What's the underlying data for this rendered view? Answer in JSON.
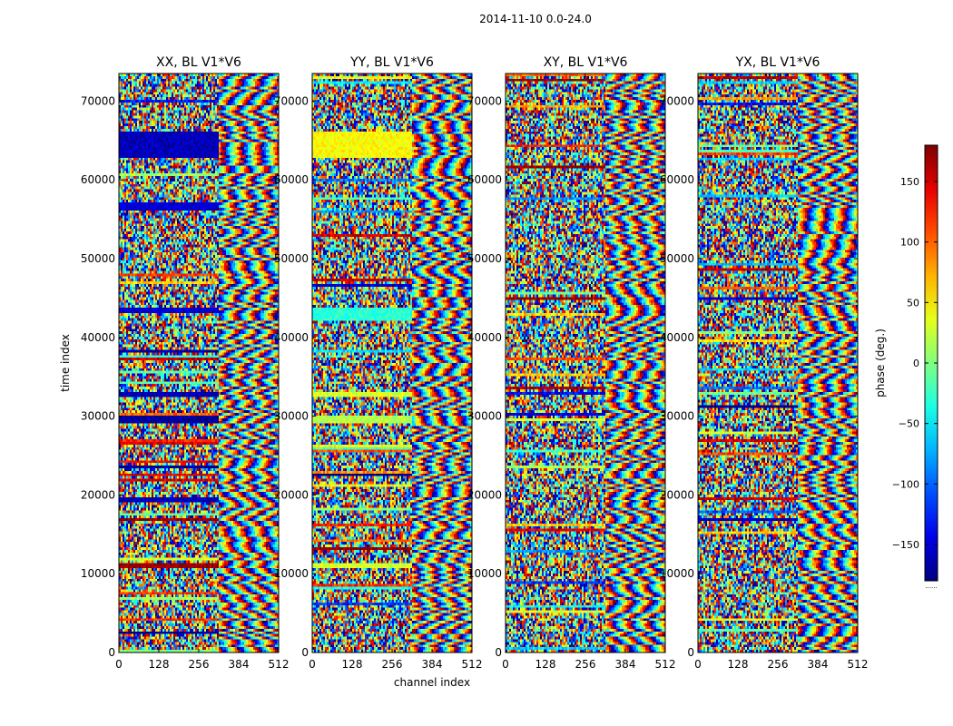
{
  "chart_data": {
    "type": "heatmap",
    "suptitle": "2014-11-10 0.0-24.0",
    "xlabel": "channel index",
    "ylabel": "time index",
    "xlim": [
      0,
      512
    ],
    "ylim": [
      0,
      73500
    ],
    "xticks": [
      0,
      128,
      256,
      384,
      512
    ],
    "yticks": [
      0,
      10000,
      20000,
      30000,
      40000,
      50000,
      60000,
      70000
    ],
    "xtick_labels": [
      "0",
      "128",
      "256",
      "384",
      "512"
    ],
    "ytick_labels": [
      "0",
      "10000",
      "20000",
      "30000",
      "40000",
      "50000",
      "60000",
      "70000"
    ],
    "colormap": "jet",
    "colorbar": {
      "label": "phase (deg.)",
      "range": [
        -180,
        180
      ],
      "ticks": [
        150,
        100,
        50,
        0,
        -50,
        -100,
        -150
      ],
      "tick_labels": [
        "150",
        "100",
        "50",
        "0",
        "−50",
        "−100",
        "−150"
      ],
      "footer": "......"
    },
    "panels": [
      {
        "title": "XX, BL V1*V6",
        "pol": "XX"
      },
      {
        "title": "YY, BL V1*V6",
        "pol": "YY"
      },
      {
        "title": "XY, BL V1*V6",
        "pol": "XY"
      },
      {
        "title": "YX, BL V1*V6",
        "pol": "YX"
      }
    ],
    "coherent_time_bands": [
      {
        "pol": "XX",
        "t0": 62800,
        "t1": 66000,
        "c1": 320,
        "phase": -160
      },
      {
        "pol": "XX",
        "t0": 43000,
        "t1": 43800,
        "c1": 320,
        "phase": -150
      },
      {
        "pol": "XX",
        "t0": 32500,
        "t1": 33100,
        "c1": 320,
        "phase": -160
      },
      {
        "pol": "XX",
        "t0": 29200,
        "t1": 30200,
        "c1": 320,
        "phase": -170
      },
      {
        "pol": "XX",
        "t0": 19200,
        "t1": 19700,
        "c1": 320,
        "phase": -160
      },
      {
        "pol": "XX",
        "t0": 10700,
        "t1": 11300,
        "c1": 320,
        "phase": 170
      },
      {
        "pol": "XX",
        "t0": 56200,
        "t1": 57200,
        "c1": 320,
        "phase": -150
      },
      {
        "pol": "YY",
        "t0": 62800,
        "t1": 66000,
        "c1": 320,
        "phase": 45
      },
      {
        "pol": "YY",
        "t0": 42000,
        "t1": 43800,
        "c1": 320,
        "phase": -30
      },
      {
        "pol": "YY",
        "t0": 29200,
        "t1": 30200,
        "c1": 320,
        "phase": 20
      },
      {
        "pol": "YY",
        "t0": 32500,
        "t1": 33100,
        "c1": 320,
        "phase": 30
      },
      {
        "pol": "YY",
        "t0": 10700,
        "t1": 11300,
        "c1": 320,
        "phase": 30
      }
    ]
  }
}
